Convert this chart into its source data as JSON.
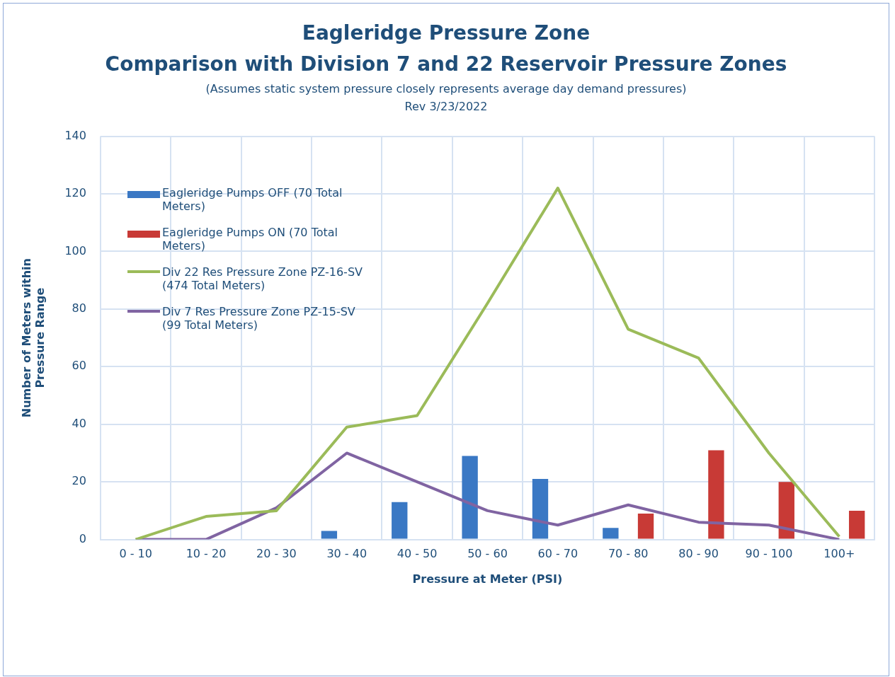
{
  "chart_data": {
    "type": "bar",
    "title": "Eagleridge Pressure Zone\nComparison with Division 7 and 22 Reservoir Pressure Zones",
    "subtitle": "(Assumes static system pressure closely represents average day demand pressures)",
    "annotations": [
      "Rev 3/23/2022"
    ],
    "xlabel": "Pressure at Meter (PSI)",
    "ylabel": "Number of Meters within\nPressure Range",
    "categories": [
      "0 - 10",
      "10 - 20",
      "20 - 30",
      "30 - 40",
      "40 - 50",
      "50 - 60",
      "60 - 70",
      "70 - 80",
      "80 - 90",
      "90 - 100",
      "100+"
    ],
    "series": [
      {
        "name": "Eagleridge Pumps OFF (70 Total Meters)",
        "color": "#3a78c4",
        "values": [
          0,
          0,
          0,
          3,
          13,
          29,
          21,
          4,
          0,
          0,
          0
        ]
      },
      {
        "name": "Eagleridge Pumps ON (70 Total Meters)",
        "color": "#c83a36",
        "values": [
          0,
          0,
          0,
          0,
          0,
          0,
          0,
          9,
          31,
          20,
          10
        ]
      },
      {
        "name": "Div 22 Res Pressure Zone PZ-16-SV (474 Total Meters)",
        "type": "line",
        "color": "#9bbb59",
        "values": [
          0,
          8,
          10,
          39,
          43,
          82,
          122,
          73,
          63,
          30,
          1
        ]
      },
      {
        "name": "Div 7 Res Pressure Zone PZ-15-SV (99 Total Meters)",
        "type": "line",
        "color": "#8064a2",
        "values": [
          0,
          0,
          11,
          30,
          20,
          10,
          5,
          12,
          6,
          5,
          0
        ]
      }
    ],
    "ylim": [
      0,
      140
    ],
    "yticks": [
      0,
      20,
      40,
      60,
      80,
      100,
      120,
      140
    ],
    "grid": true,
    "legend": "top left",
    "marker": "none",
    "line_style": "solid"
  }
}
